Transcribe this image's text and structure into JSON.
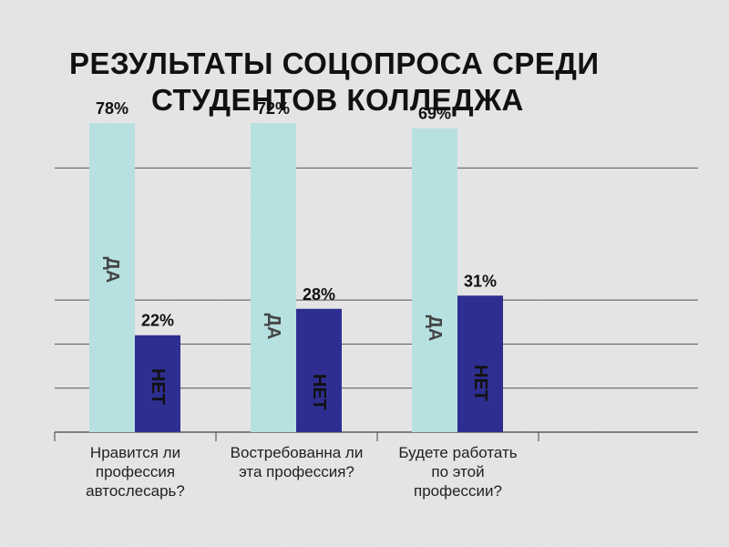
{
  "title": {
    "line1": "РЕЗУЛЬТАТЫ СОЦОПРОСА СРЕДИ",
    "line2": "СТУДЕНТОВ КОЛЛЕДЖА"
  },
  "colors": {
    "yes": "#b7e0e0",
    "no": "#2e2e91",
    "grid": "#555555",
    "axis": "#444444"
  },
  "chart_data": {
    "type": "bar",
    "title": "РЕЗУЛЬТАТЫ СОЦОПРОСА СРЕДИ СТУДЕНТОВ КОЛЛЕДЖА",
    "categories": [
      [
        "Нравится ли",
        "профессия",
        "автослесарь?"
      ],
      [
        "Востребованна ли",
        "эта профессия?"
      ],
      [
        "Будете работать",
        "по этой",
        "профессии?"
      ]
    ],
    "series": [
      {
        "name": "ДА",
        "values": [
          78,
          72,
          69
        ],
        "labels": [
          "78%",
          "72%",
          "69%"
        ]
      },
      {
        "name": "НЕТ",
        "values": [
          22,
          28,
          31
        ],
        "labels": [
          "22%",
          "28%",
          "31%"
        ]
      }
    ],
    "ylim": [
      0,
      60
    ],
    "grid": true,
    "legend": "none"
  }
}
